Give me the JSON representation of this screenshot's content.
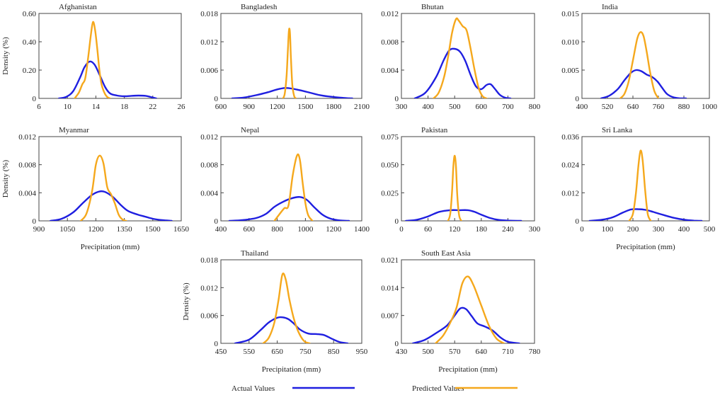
{
  "colors": {
    "actual": "#1f1fe0",
    "predicted": "#f5a81c",
    "axis": "#444444",
    "text": "#222222"
  },
  "legend": {
    "items": [
      {
        "label": "Actual Values",
        "color": "#1f1fe0"
      },
      {
        "label": "Predicted Values",
        "color": "#f5a81c"
      }
    ]
  },
  "chart_data": [
    {
      "type": "line",
      "title": "Afghanistan",
      "ylabel": "Density (%)",
      "xlabel": "",
      "xlim": [
        6,
        26
      ],
      "ylim": [
        0,
        0.6
      ],
      "xticks": [
        6,
        10,
        14,
        18,
        22,
        26
      ],
      "yticks": [
        {
          "v": 0,
          "t": "0"
        },
        {
          "v": 0.2,
          "t": "0.20"
        },
        {
          "v": 0.4,
          "t": "0.40"
        },
        {
          "v": 0.6,
          "t": "0.60"
        }
      ],
      "series": [
        {
          "name": "Actual Values",
          "color": "#1f1fe0",
          "x": [
            8.8,
            9.8,
            10.8,
            11.8,
            12.4,
            13.1,
            13.8,
            14.5,
            15.3,
            16.0,
            17.0,
            18.0,
            19.0,
            20.0,
            21.0,
            21.7,
            22.5
          ],
          "y": [
            0.0,
            0.01,
            0.05,
            0.15,
            0.22,
            0.26,
            0.24,
            0.17,
            0.08,
            0.035,
            0.02,
            0.015,
            0.018,
            0.02,
            0.018,
            0.01,
            0.0
          ]
        },
        {
          "name": "Predicted Values",
          "color": "#f5a81c",
          "x": [
            11.0,
            11.6,
            12.1,
            12.5,
            12.9,
            13.3,
            13.6,
            13.9,
            14.2,
            14.5,
            14.8,
            15.2,
            15.6,
            16.0
          ],
          "y": [
            0.0,
            0.04,
            0.1,
            0.14,
            0.28,
            0.45,
            0.54,
            0.48,
            0.35,
            0.2,
            0.1,
            0.04,
            0.01,
            0.0
          ]
        }
      ]
    },
    {
      "type": "line",
      "title": "Bangladesh",
      "ylabel": "",
      "xlabel": "",
      "xlim": [
        600,
        2100
      ],
      "ylim": [
        0,
        0.018
      ],
      "xticks": [
        600,
        900,
        1200,
        1500,
        1800,
        2100
      ],
      "yticks": [
        {
          "v": 0,
          "t": "0"
        },
        {
          "v": 0.006,
          "t": "0.006"
        },
        {
          "v": 0.012,
          "t": "0.012"
        },
        {
          "v": 0.018,
          "t": "0.018"
        }
      ],
      "series": [
        {
          "name": "Actual Values",
          "color": "#1f1fe0",
          "x": [
            720,
            850,
            1000,
            1100,
            1200,
            1280,
            1350,
            1450,
            1550,
            1650,
            1750,
            1850,
            1950,
            2000
          ],
          "y": [
            0.0,
            0.0002,
            0.0008,
            0.0013,
            0.0019,
            0.0022,
            0.0021,
            0.0017,
            0.0012,
            0.0007,
            0.0004,
            0.0002,
            5e-05,
            0.0
          ]
        },
        {
          "name": "Predicted Values",
          "color": "#f5a81c",
          "x": [
            1260,
            1280,
            1300,
            1315,
            1325,
            1335,
            1345,
            1360,
            1380,
            1400
          ],
          "y": [
            0.0,
            0.001,
            0.005,
            0.011,
            0.0145,
            0.014,
            0.009,
            0.003,
            0.0005,
            0.0
          ]
        }
      ]
    },
    {
      "type": "line",
      "title": "Bhutan",
      "ylabel": "",
      "xlabel": "",
      "xlim": [
        300,
        800
      ],
      "ylim": [
        0,
        0.012
      ],
      "xticks": [
        300,
        400,
        500,
        600,
        700,
        800
      ],
      "yticks": [
        {
          "v": 0,
          "t": "0"
        },
        {
          "v": 0.004,
          "t": "0.004"
        },
        {
          "v": 0.008,
          "t": "0.008"
        },
        {
          "v": 0.012,
          "t": "0.012"
        }
      ],
      "series": [
        {
          "name": "Actual Values",
          "color": "#1f1fe0",
          "x": [
            350,
            390,
            430,
            460,
            480,
            500,
            520,
            540,
            560,
            580,
            600,
            620,
            635,
            650,
            670,
            690,
            710
          ],
          "y": [
            0.0,
            0.0008,
            0.003,
            0.0055,
            0.0068,
            0.007,
            0.0066,
            0.0053,
            0.0033,
            0.0017,
            0.0013,
            0.0019,
            0.002,
            0.0014,
            0.0005,
            0.0001,
            0.0
          ]
        },
        {
          "name": "Predicted Values",
          "color": "#f5a81c",
          "x": [
            420,
            440,
            460,
            475,
            490,
            505,
            515,
            530,
            545,
            560,
            575,
            590,
            605,
            620
          ],
          "y": [
            0.0,
            0.0008,
            0.003,
            0.0058,
            0.0092,
            0.0112,
            0.011,
            0.0102,
            0.0096,
            0.007,
            0.004,
            0.0015,
            0.0003,
            0.0
          ]
        }
      ]
    },
    {
      "type": "line",
      "title": "India",
      "ylabel": "",
      "xlabel": "",
      "xlim": [
        400,
        1000
      ],
      "ylim": [
        0,
        0.015
      ],
      "xticks": [
        400,
        520,
        640,
        760,
        880,
        1000
      ],
      "yticks": [
        {
          "v": 0,
          "t": "0"
        },
        {
          "v": 0.005,
          "t": "0.005"
        },
        {
          "v": 0.01,
          "t": "0.010"
        },
        {
          "v": 0.015,
          "t": "0.015"
        }
      ],
      "series": [
        {
          "name": "Actual Values",
          "color": "#1f1fe0",
          "x": [
            490,
            530,
            570,
            600,
            630,
            655,
            680,
            705,
            730,
            755,
            775,
            800,
            830,
            860,
            890
          ],
          "y": [
            0.0,
            0.0005,
            0.0017,
            0.0032,
            0.0045,
            0.005,
            0.0048,
            0.0042,
            0.0038,
            0.003,
            0.002,
            0.0008,
            0.0002,
            3e-05,
            0.0
          ]
        },
        {
          "name": "Predicted Values",
          "color": "#f5a81c",
          "x": [
            580,
            600,
            620,
            640,
            660,
            675,
            690,
            705,
            720,
            740,
            760
          ],
          "y": [
            0.0,
            0.0008,
            0.003,
            0.0067,
            0.0105,
            0.0117,
            0.011,
            0.0082,
            0.0048,
            0.0014,
            0.0
          ]
        }
      ]
    },
    {
      "type": "line",
      "title": "Myanmar",
      "ylabel": "Density (%)",
      "xlabel": "Precipitation (mm)",
      "xlim": [
        900,
        1650
      ],
      "ylim": [
        0,
        0.012
      ],
      "xticks": [
        900,
        1050,
        1200,
        1350,
        1500,
        1650
      ],
      "yticks": [
        {
          "v": 0,
          "t": "0"
        },
        {
          "v": 0.004,
          "t": "0.004"
        },
        {
          "v": 0.008,
          "t": "0.008"
        },
        {
          "v": 0.012,
          "t": "0.012"
        }
      ],
      "series": [
        {
          "name": "Actual Values",
          "color": "#1f1fe0",
          "x": [
            960,
            1020,
            1080,
            1130,
            1180,
            1220,
            1250,
            1290,
            1330,
            1370,
            1420,
            1460,
            1500,
            1550,
            1600
          ],
          "y": [
            0.0,
            0.0003,
            0.0012,
            0.0025,
            0.0037,
            0.0042,
            0.0041,
            0.0034,
            0.0023,
            0.0014,
            0.0009,
            0.0006,
            0.0003,
            0.0001,
            0.0
          ]
        },
        {
          "name": "Predicted Values",
          "color": "#f5a81c",
          "x": [
            1120,
            1150,
            1180,
            1200,
            1220,
            1240,
            1260,
            1280,
            1300,
            1320,
            1340,
            1360
          ],
          "y": [
            0.0,
            0.001,
            0.0042,
            0.008,
            0.0093,
            0.0082,
            0.0048,
            0.0038,
            0.0025,
            0.0009,
            0.0002,
            0.0
          ]
        }
      ]
    },
    {
      "type": "line",
      "title": "Nepal",
      "ylabel": "",
      "xlabel": "",
      "xlim": [
        400,
        1400
      ],
      "ylim": [
        0,
        0.012
      ],
      "xticks": [
        400,
        600,
        800,
        1000,
        1200,
        1400
      ],
      "yticks": [
        {
          "v": 0,
          "t": "0"
        },
        {
          "v": 0.004,
          "t": "0.004"
        },
        {
          "v": 0.008,
          "t": "0.008"
        },
        {
          "v": 0.012,
          "t": "0.012"
        }
      ],
      "series": [
        {
          "name": "Actual Values",
          "color": "#1f1fe0",
          "x": [
            460,
            550,
            650,
            720,
            780,
            840,
            900,
            960,
            1010,
            1060,
            1120,
            1180,
            1250,
            1310
          ],
          "y": [
            0.0,
            0.0001,
            0.0004,
            0.001,
            0.002,
            0.0027,
            0.0032,
            0.0034,
            0.003,
            0.002,
            0.0009,
            0.0003,
            5e-05,
            0.0
          ]
        },
        {
          "name": "Predicted Values",
          "color": "#f5a81c",
          "x": [
            780,
            810,
            850,
            880,
            910,
            940,
            960,
            980,
            1000,
            1020,
            1050
          ],
          "y": [
            0.0,
            0.0008,
            0.0018,
            0.0022,
            0.0065,
            0.0093,
            0.0088,
            0.0055,
            0.0025,
            0.0008,
            0.0
          ]
        }
      ]
    },
    {
      "type": "line",
      "title": "Pakistan",
      "ylabel": "",
      "xlabel": "",
      "xlim": [
        0,
        300
      ],
      "ylim": [
        0,
        0.075
      ],
      "xticks": [
        0,
        60,
        120,
        180,
        240,
        300
      ],
      "yticks": [
        {
          "v": 0,
          "t": "0"
        },
        {
          "v": 0.025,
          "t": "0.025"
        },
        {
          "v": 0.05,
          "t": "0.050"
        },
        {
          "v": 0.075,
          "t": "0.075"
        }
      ],
      "series": [
        {
          "name": "Actual Values",
          "color": "#1f1fe0",
          "x": [
            10,
            35,
            60,
            85,
            110,
            130,
            150,
            165,
            180,
            200,
            220,
            245,
            270
          ],
          "y": [
            0.0,
            0.001,
            0.004,
            0.008,
            0.0095,
            0.0095,
            0.0095,
            0.008,
            0.0055,
            0.0025,
            0.0008,
            0.0002,
            0.0
          ]
        },
        {
          "name": "Predicted Values",
          "color": "#f5a81c",
          "x": [
            105,
            110,
            114,
            117,
            120,
            123,
            126,
            130,
            135
          ],
          "y": [
            0.0,
            0.006,
            0.025,
            0.048,
            0.058,
            0.048,
            0.022,
            0.005,
            0.0
          ]
        }
      ]
    },
    {
      "type": "line",
      "title": "Sri Lanka",
      "ylabel": "",
      "xlabel": "Precipitation (mm)",
      "xlim": [
        0,
        500
      ],
      "ylim": [
        0,
        0.036
      ],
      "xticks": [
        0,
        100,
        200,
        300,
        400,
        500
      ],
      "yticks": [
        {
          "v": 0,
          "t": "0"
        },
        {
          "v": 0.012,
          "t": "0.012"
        },
        {
          "v": 0.024,
          "t": "0.024"
        },
        {
          "v": 0.036,
          "t": "0.036"
        }
      ],
      "series": [
        {
          "name": "Actual Values",
          "color": "#1f1fe0",
          "x": [
            30,
            80,
            120,
            160,
            190,
            220,
            250,
            280,
            320,
            360,
            400,
            440,
            470
          ],
          "y": [
            0.0,
            0.0005,
            0.0015,
            0.0035,
            0.0048,
            0.005,
            0.0047,
            0.0038,
            0.0025,
            0.0013,
            0.0005,
            0.0001,
            0.0
          ]
        },
        {
          "name": "Predicted Values",
          "color": "#f5a81c",
          "x": [
            185,
            200,
            212,
            222,
            230,
            238,
            248,
            258,
            270
          ],
          "y": [
            0.0,
            0.003,
            0.012,
            0.024,
            0.03,
            0.026,
            0.013,
            0.003,
            0.0
          ]
        }
      ]
    },
    {
      "type": "line",
      "title": "Thailand",
      "ylabel": "Density (%)",
      "xlabel": "Precipitation (mm)",
      "xlim": [
        450,
        950
      ],
      "ylim": [
        0,
        0.018
      ],
      "xticks": [
        450,
        550,
        650,
        750,
        850,
        950
      ],
      "yticks": [
        {
          "v": 0,
          "t": "0"
        },
        {
          "v": 0.006,
          "t": "0.006"
        },
        {
          "v": 0.012,
          "t": "0.012"
        },
        {
          "v": 0.018,
          "t": "0.018"
        }
      ],
      "series": [
        {
          "name": "Actual Values",
          "color": "#1f1fe0",
          "x": [
            500,
            550,
            590,
            620,
            650,
            670,
            690,
            710,
            730,
            760,
            790,
            815,
            840,
            870,
            900
          ],
          "y": [
            0.0,
            0.0008,
            0.0028,
            0.0045,
            0.0055,
            0.0056,
            0.0052,
            0.0042,
            0.003,
            0.0021,
            0.002,
            0.0018,
            0.0011,
            0.0003,
            0.0
          ]
        },
        {
          "name": "Predicted Values",
          "color": "#f5a81c",
          "x": [
            600,
            620,
            640,
            655,
            668,
            680,
            693,
            708,
            725,
            745,
            765
          ],
          "y": [
            0.0,
            0.0012,
            0.0045,
            0.0095,
            0.0148,
            0.0138,
            0.0095,
            0.0055,
            0.0025,
            0.0005,
            0.0
          ]
        }
      ]
    },
    {
      "type": "line",
      "title": "South East Asia",
      "ylabel": "",
      "xlabel": "Precipitation (mm)",
      "xlim": [
        430,
        780
      ],
      "ylim": [
        0,
        0.021
      ],
      "xticks": [
        430,
        500,
        570,
        640,
        710,
        780
      ],
      "yticks": [
        {
          "v": 0,
          "t": "0"
        },
        {
          "v": 0.007,
          "t": "0.007"
        },
        {
          "v": 0.014,
          "t": "0.014"
        },
        {
          "v": 0.021,
          "t": "0.021"
        }
      ],
      "series": [
        {
          "name": "Actual Values",
          "color": "#1f1fe0",
          "x": [
            460,
            490,
            520,
            550,
            570,
            585,
            600,
            615,
            630,
            650,
            670,
            690,
            710,
            740
          ],
          "y": [
            0.0,
            0.0008,
            0.0025,
            0.0045,
            0.007,
            0.0088,
            0.0086,
            0.0068,
            0.005,
            0.0042,
            0.0032,
            0.0015,
            0.0004,
            0.0
          ]
        },
        {
          "name": "Predicted Values",
          "color": "#f5a81c",
          "x": [
            520,
            540,
            560,
            575,
            590,
            605,
            620,
            640,
            660,
            680,
            700
          ],
          "y": [
            0.0,
            0.002,
            0.0055,
            0.009,
            0.015,
            0.0168,
            0.0145,
            0.0095,
            0.0045,
            0.0012,
            0.0
          ]
        }
      ]
    }
  ]
}
